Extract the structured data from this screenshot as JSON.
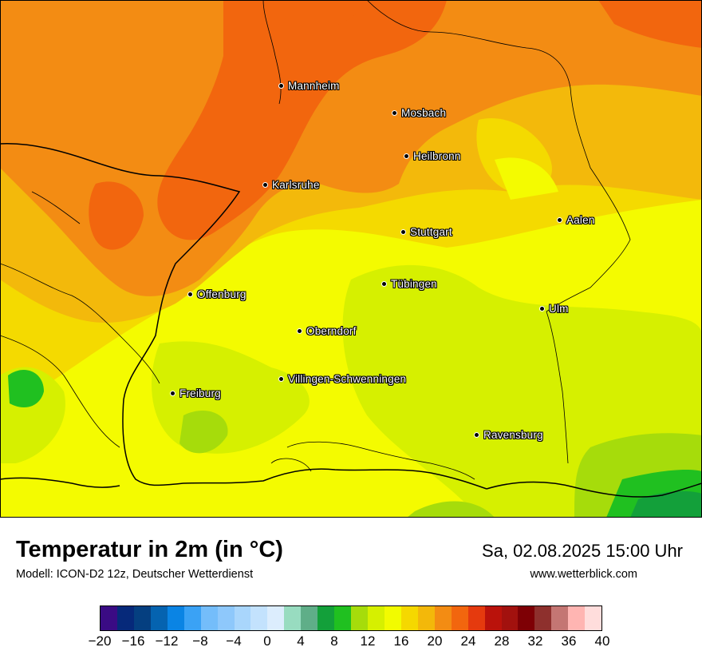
{
  "title": "Temperatur in 2m (in °C)",
  "subtitle": "Modell: ICON-D2 12z, Deutscher Wetterdienst",
  "datetime": "Sa, 02.08.2025 15:00 Uhr",
  "website": "www.wetterblick.com",
  "cities": [
    {
      "name": "Mannheim",
      "key": "mannheim"
    },
    {
      "name": "Mosbach",
      "key": "mosbach"
    },
    {
      "name": "Heilbronn",
      "key": "heilbronn"
    },
    {
      "name": "Karlsruhe",
      "key": "karlsruhe"
    },
    {
      "name": "Stuttgart",
      "key": "stuttgart"
    },
    {
      "name": "Aalen",
      "key": "aalen"
    },
    {
      "name": "Tübingen",
      "key": "tuebingen"
    },
    {
      "name": "Offenburg",
      "key": "offenburg"
    },
    {
      "name": "Ulm",
      "key": "ulm"
    },
    {
      "name": "Oberndorf",
      "key": "oberndorf"
    },
    {
      "name": "Villingen-Schwenningen",
      "key": "villingen"
    },
    {
      "name": "Freiburg",
      "key": "freiburg"
    },
    {
      "name": "Ravensburg",
      "key": "ravensburg"
    }
  ],
  "legend": {
    "min": -20,
    "max": 40,
    "step": 2,
    "tick_labels": [
      "−20",
      "−16",
      "−12",
      "−8",
      "−4",
      "0",
      "4",
      "8",
      "12",
      "16",
      "20",
      "24",
      "28",
      "32",
      "36",
      "40"
    ],
    "colors": [
      "#3a0b84",
      "#06297a",
      "#053f80",
      "#0563b0",
      "#0a84e4",
      "#3aa2f5",
      "#74bdfa",
      "#8ec8fb",
      "#a9d6fc",
      "#c3e2fd",
      "#dcedfd",
      "#98dcc0",
      "#5fae88",
      "#13a03a",
      "#20c020",
      "#a6dc0b",
      "#d6f000",
      "#f2fb00",
      "#f5d800",
      "#f3b80a",
      "#f38c13",
      "#f2660e",
      "#e53a0e",
      "#ba120b",
      "#a2110e",
      "#7e0005",
      "#8e302d",
      "#c47673",
      "#ffb5b2",
      "#ffdddc"
    ]
  },
  "map_colors": {
    "yellow": "#f4fb00",
    "yellow_orange": "#f4da00",
    "light_orange": "#f3b90b",
    "orange": "#f38c13",
    "dark_orange": "#f2660e",
    "lime": "#d6f000",
    "yellow_green": "#a6dc0b",
    "green": "#20c020",
    "dark_green": "#13a03a"
  }
}
